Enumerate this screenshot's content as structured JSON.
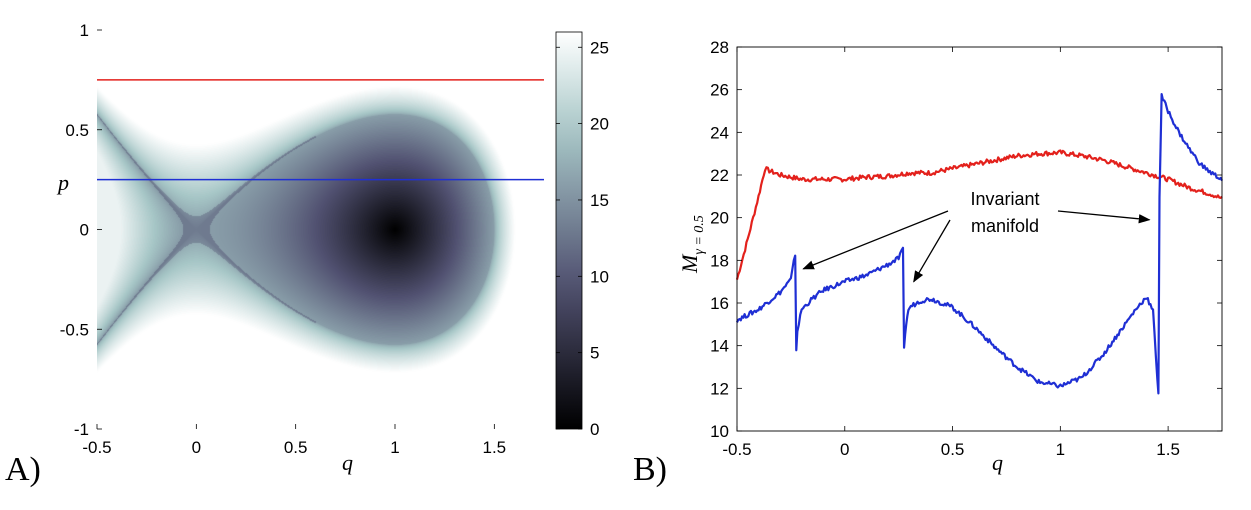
{
  "chart_data": [
    {
      "panel_label": "A)",
      "type": "heatmap",
      "xlabel": "q",
      "ylabel": "p",
      "xlim": [
        -0.5,
        1.75
      ],
      "ylim": [
        -1,
        1
      ],
      "x_ticks": [
        "-0.5",
        "0",
        "0.5",
        "1",
        "1.5"
      ],
      "y_ticks": [
        "1",
        "0.5",
        "0",
        "-0.5",
        "-1"
      ],
      "colorbar": {
        "range": [
          0,
          26
        ],
        "ticks": [
          "25",
          "20",
          "15",
          "10",
          "5",
          "0"
        ]
      },
      "field": {
        "center": [
          1,
          0
        ],
        "center_value": 0,
        "boundary_value": 16,
        "outside_max": 26,
        "description": "phase-space map; dark well around (1,0) bounded by fish-shaped invariant manifold crossing at (0,0) with right tip near q=1.5"
      },
      "lines": [
        {
          "name": "red",
          "color": "#e3211c",
          "y": 0.75
        },
        {
          "name": "blue",
          "color": "#1f2fd4",
          "y": 0.25
        }
      ],
      "grid": false,
      "legend": "none"
    },
    {
      "panel_label": "B)",
      "type": "line",
      "xlabel": "q",
      "ylabel": "Mγ=0.5",
      "ylabel_main": "M",
      "ylabel_sub": "γ = 0.5",
      "xlim": [
        -0.5,
        1.75
      ],
      "ylim": [
        10,
        28
      ],
      "x_ticks": [
        "-0.5",
        "0",
        "0.5",
        "1",
        "1.5"
      ],
      "y_ticks": [
        "28",
        "26",
        "24",
        "22",
        "20",
        "18",
        "16",
        "14",
        "12",
        "10"
      ],
      "grid": false,
      "legend": "none",
      "annotation": {
        "line1": "Invariant",
        "line2": "manifold",
        "arrow_targets_q": [
          -0.22,
          0.32,
          1.47
        ]
      },
      "series": [
        {
          "color": "#e3211c",
          "x": [
            -0.5,
            -0.45,
            -0.4,
            -0.37,
            -0.35,
            -0.3,
            -0.2,
            -0.1,
            0.0,
            0.1,
            0.2,
            0.3,
            0.4,
            0.5,
            0.6,
            0.7,
            0.8,
            0.9,
            1.0,
            1.1,
            1.2,
            1.3,
            1.4,
            1.5,
            1.6,
            1.7,
            1.75
          ],
          "y": [
            17.1,
            19.0,
            21.0,
            22.3,
            22.2,
            22.0,
            21.8,
            21.8,
            21.8,
            21.9,
            21.95,
            22.1,
            22.1,
            22.3,
            22.5,
            22.7,
            22.9,
            23.0,
            23.05,
            22.9,
            22.7,
            22.4,
            22.1,
            21.8,
            21.4,
            21.1,
            20.9
          ]
        },
        {
          "color": "#1f2fd4",
          "x": [
            -0.5,
            -0.4,
            -0.3,
            -0.25,
            -0.23,
            -0.225,
            -0.22,
            -0.2,
            -0.15,
            -0.1,
            0.0,
            0.1,
            0.2,
            0.25,
            0.27,
            0.275,
            0.28,
            0.29,
            0.3,
            0.35,
            0.4,
            0.5,
            0.6,
            0.7,
            0.8,
            0.9,
            1.0,
            1.1,
            1.2,
            1.3,
            1.35,
            1.4,
            1.43,
            1.45,
            1.455,
            1.46,
            1.47,
            1.5,
            1.55,
            1.6,
            1.65,
            1.7,
            1.75
          ],
          "y": [
            15.2,
            15.7,
            16.5,
            17.1,
            18.3,
            13.8,
            14.7,
            15.7,
            16.2,
            16.6,
            17.0,
            17.3,
            17.8,
            18.1,
            18.5,
            13.8,
            14.6,
            15.4,
            15.8,
            16.1,
            16.2,
            15.8,
            14.9,
            13.9,
            13.0,
            12.3,
            12.1,
            12.5,
            13.6,
            15.0,
            15.7,
            16.3,
            15.6,
            12.5,
            11.8,
            21.0,
            25.7,
            25.0,
            24.0,
            23.2,
            22.5,
            22.1,
            21.8
          ]
        }
      ]
    }
  ]
}
